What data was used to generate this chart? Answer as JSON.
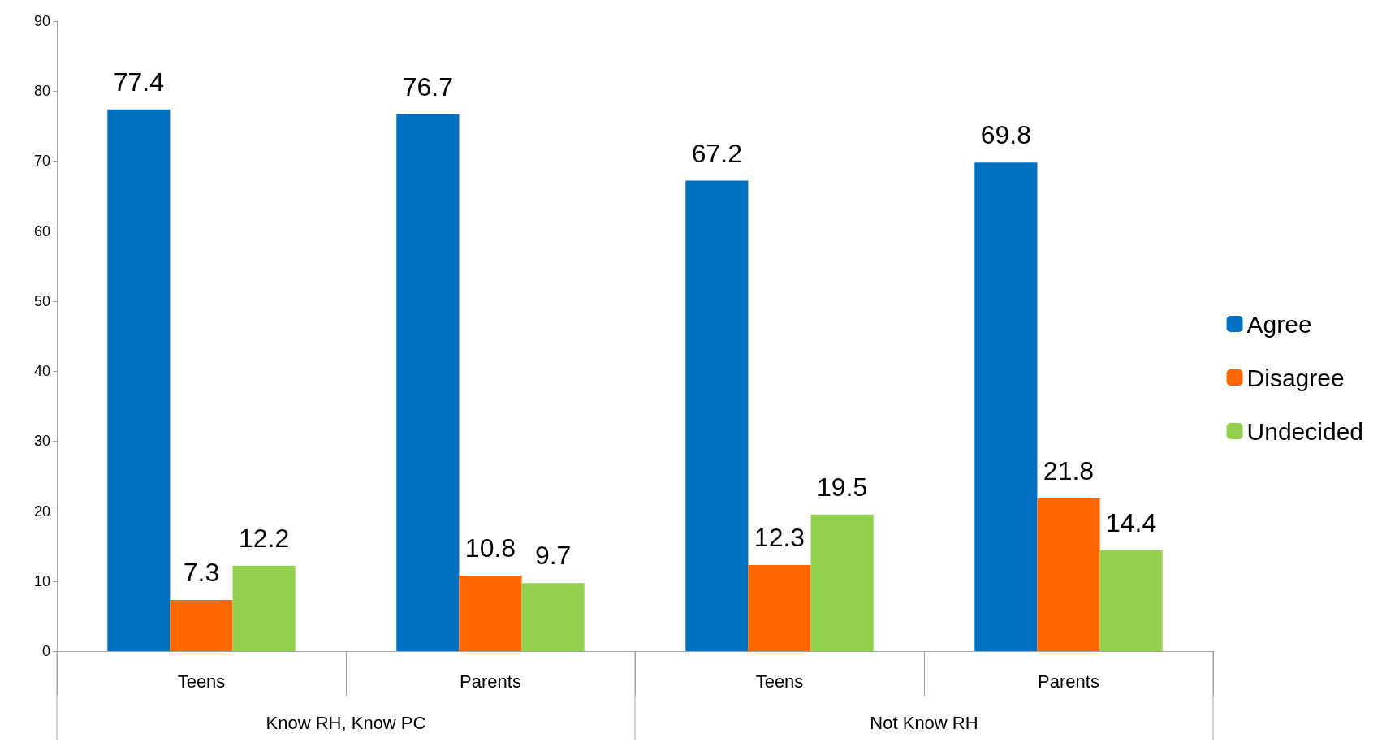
{
  "chart_data": {
    "type": "bar",
    "categories": [
      "Teens",
      "Parents",
      "Teens",
      "Parents"
    ],
    "series": [
      {
        "name": "Agree",
        "color": "#0070c0",
        "values": [
          77.4,
          76.7,
          67.2,
          69.8
        ]
      },
      {
        "name": "Disagree",
        "color": "#ff6600",
        "values": [
          7.3,
          10.8,
          12.3,
          21.8
        ]
      },
      {
        "name": "Undecided",
        "color": "#92d050",
        "values": [
          12.2,
          9.7,
          19.5,
          14.4
        ]
      }
    ],
    "annotations": [
      "Know RH, Know PC",
      "Not Know RH"
    ],
    "ylim": [
      0,
      90
    ],
    "yticks": [
      0,
      10,
      20,
      30,
      40,
      50,
      60,
      70,
      80,
      90
    ],
    "grid": false,
    "legend": "right",
    "data_labels": true
  }
}
